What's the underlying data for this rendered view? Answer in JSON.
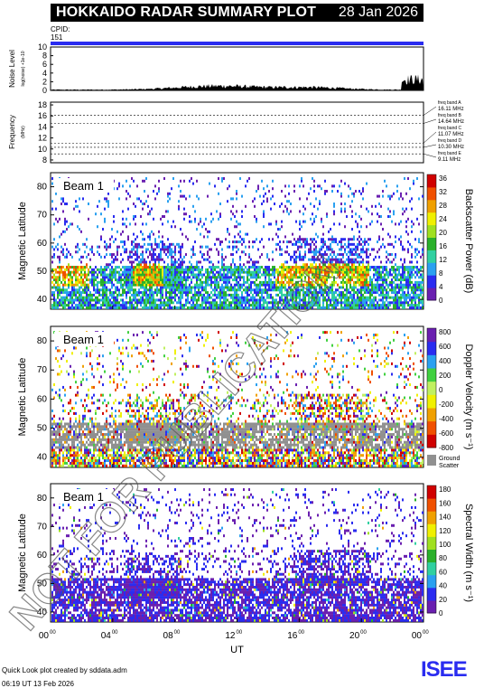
{
  "header": {
    "title": "HOKKAIDO RADAR SUMMARY PLOT",
    "date": "28 Jan 2026"
  },
  "cpid": {
    "label": "CPID:",
    "value": "151",
    "bar_color": "#2a2cf0"
  },
  "noise": {
    "ylabel_main": "Noise Level",
    "ylabel_sub": "log(noise) +1e-10",
    "ticks": [
      "0",
      "2",
      "4",
      "6",
      "8",
      "10"
    ]
  },
  "frequency": {
    "ylabel_main": "Frequency",
    "ylabel_unit": "(MHz)",
    "ticks": [
      "8",
      "10",
      "12",
      "14",
      "16",
      "18"
    ],
    "bands": [
      {
        "label": "freq band A",
        "value": "16.11 MHz"
      },
      {
        "label": "freq band B",
        "value": "14.64 MHz"
      },
      {
        "label": "freq band C",
        "value": "11.07 MHz"
      },
      {
        "label": "freq band D",
        "value": "10.30 MHz"
      },
      {
        "label": "freq band E",
        "value": "9.11 MHz"
      }
    ]
  },
  "panels": [
    {
      "beam_label": "Beam 1",
      "ylabel": "Magnetic Latitude",
      "cbar_title": "Backscatter Power (dB)",
      "cbar_ticks": [
        "0",
        "4",
        "8",
        "12",
        "16",
        "20",
        "24",
        "28",
        "32",
        "36"
      ]
    },
    {
      "beam_label": "Beam 1",
      "ylabel": "Magnetic Latitude",
      "cbar_title": "Doppler Velocity (m s⁻¹)",
      "cbar_ticks": [
        "-800",
        "-600",
        "-400",
        "-200",
        "0",
        "200",
        "400",
        "600",
        "800"
      ],
      "gs_label_1": "Ground",
      "gs_label_2": "Scatter"
    },
    {
      "beam_label": "Beam 1",
      "ylabel": "Magnetic Latitude",
      "cbar_title": "Spectral Width (m s⁻¹)",
      "cbar_ticks": [
        "0",
        "20",
        "40",
        "60",
        "80",
        "100",
        "120",
        "140",
        "160",
        "180"
      ]
    }
  ],
  "lat_ticks": [
    "40",
    "50",
    "60",
    "70",
    "80"
  ],
  "x_ticks": [
    "00",
    "04",
    "08",
    "12",
    "16",
    "20",
    "00"
  ],
  "x_tick_sup": "00",
  "xlabel": "UT",
  "watermark": "NOT FOR PUBLICATION",
  "footer": {
    "line1": "Quick Look plot created by sddata.adm",
    "line2": "06:19 UT 13 Feb 2026"
  },
  "logo": {
    "text": "ISEE",
    "colors": [
      "#2a2cf0",
      "#19a84b",
      "#f0a000",
      "#1a7ac8"
    ]
  },
  "colors": {
    "power_scale": [
      "#6a1fb0",
      "#2a2cf0",
      "#2aa0f0",
      "#30d0a0",
      "#2ab02a",
      "#a0e020",
      "#f0f000",
      "#f0a000",
      "#f05000",
      "#d00000"
    ],
    "velocity_scale": [
      "#d00000",
      "#f05000",
      "#f0a000",
      "#f0f000",
      "#c0f060",
      "#40d040",
      "#2aa0f0",
      "#2a2cf0",
      "#6a1fb0"
    ],
    "ground_scatter": "#909090"
  }
}
